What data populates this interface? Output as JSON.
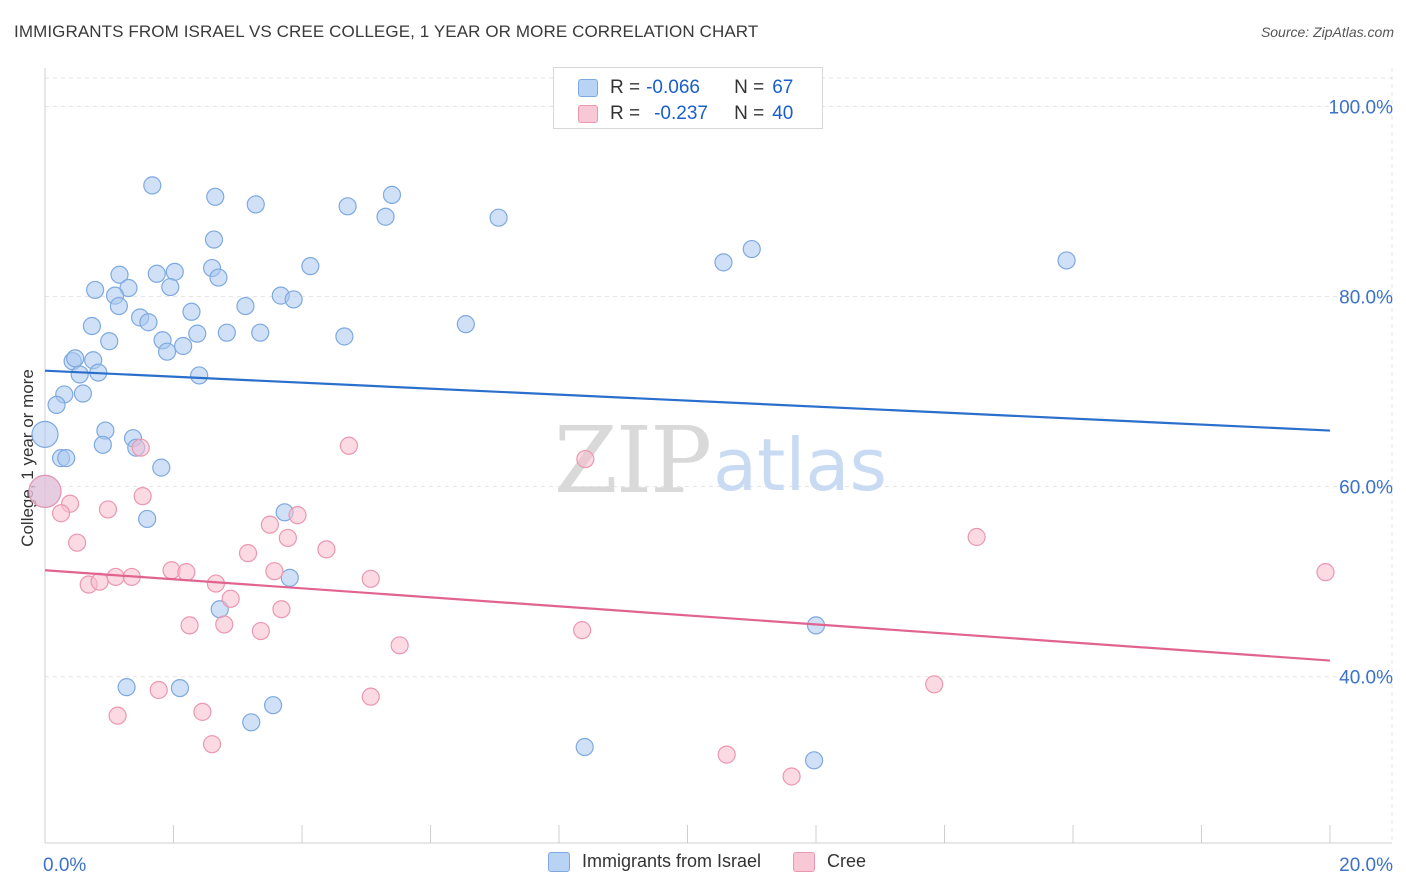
{
  "title": "IMMIGRANTS FROM ISRAEL VS CREE COLLEGE, 1 YEAR OR MORE CORRELATION CHART",
  "source": "Source: ZipAtlas.com",
  "watermark": {
    "part1": "ZIP",
    "part2": "atlas"
  },
  "legend": {
    "rows": [
      {
        "r_label": "R =",
        "r_value": "-0.066",
        "n_label": "N =",
        "n_value": "67"
      },
      {
        "r_label": "R =",
        "r_value": "-0.237",
        "n_label": "N =",
        "n_value": "40"
      }
    ]
  },
  "colors": {
    "blue_fill": "#aac8f0",
    "blue_edge": "#7ea9e0",
    "blue_line": "#2a6fcc",
    "pink_fill": "#f7bccd",
    "pink_edge": "#eb97b1",
    "pink_line": "#e0648f",
    "tick_label": "#3c72c8",
    "grid": "#e3e3e3"
  },
  "chart_data": {
    "type": "scatter",
    "title": "IMMIGRANTS FROM ISRAEL VS CREE COLLEGE, 1 YEAR OR MORE CORRELATION CHART",
    "xlabel": "",
    "ylabel": "College, 1 year or more",
    "xlim": [
      0,
      20
    ],
    "ylim": [
      22.5,
      103
    ],
    "x_tick_labels": [
      {
        "value": 0,
        "label": "0.0%"
      },
      {
        "value": 20,
        "label": "20.0%"
      }
    ],
    "y_tick_labels": [
      {
        "value": 40,
        "label": "40.0%"
      },
      {
        "value": 60,
        "label": "60.0%"
      },
      {
        "value": 80,
        "label": "80.0%"
      },
      {
        "value": 100,
        "label": "100.0%"
      }
    ],
    "grid": true,
    "legend_position": "top-center",
    "series": [
      {
        "name": "Immigrants from Israel",
        "color": "blue",
        "trend": [
          [
            0,
            72.2
          ],
          [
            20,
            65.9
          ]
        ],
        "points": [
          [
            1.67,
            91.7
          ],
          [
            2.65,
            90.5
          ],
          [
            3.28,
            89.7
          ],
          [
            4.71,
            89.5
          ],
          [
            5.3,
            88.4
          ],
          [
            5.4,
            90.7
          ],
          [
            7.06,
            88.3
          ],
          [
            2.63,
            86.0
          ],
          [
            10.56,
            83.6
          ],
          [
            11.0,
            85.0
          ],
          [
            15.9,
            83.8
          ],
          [
            1.16,
            82.3
          ],
          [
            1.74,
            82.4
          ],
          [
            2.02,
            82.6
          ],
          [
            2.6,
            83.0
          ],
          [
            2.7,
            82.0
          ],
          [
            4.13,
            83.2
          ],
          [
            0.78,
            80.7
          ],
          [
            1.3,
            80.9
          ],
          [
            1.09,
            80.1
          ],
          [
            1.15,
            79.0
          ],
          [
            1.95,
            81.0
          ],
          [
            3.12,
            79.0
          ],
          [
            3.67,
            80.1
          ],
          [
            3.87,
            79.7
          ],
          [
            0.73,
            76.9
          ],
          [
            1.48,
            77.8
          ],
          [
            1.61,
            77.3
          ],
          [
            2.28,
            78.4
          ],
          [
            1.0,
            75.3
          ],
          [
            1.83,
            75.4
          ],
          [
            1.9,
            74.2
          ],
          [
            2.15,
            74.8
          ],
          [
            2.37,
            76.1
          ],
          [
            2.83,
            76.2
          ],
          [
            3.35,
            76.2
          ],
          [
            4.66,
            75.8
          ],
          [
            6.55,
            77.1
          ],
          [
            0.43,
            73.2
          ],
          [
            0.47,
            73.5
          ],
          [
            0.75,
            73.3
          ],
          [
            0.54,
            71.8
          ],
          [
            0.83,
            72.0
          ],
          [
            2.4,
            71.7
          ],
          [
            0.3,
            69.7
          ],
          [
            0.59,
            69.8
          ],
          [
            0.18,
            68.6
          ],
          [
            0.0,
            65.5
          ],
          [
            0.94,
            65.9
          ],
          [
            1.37,
            65.1
          ],
          [
            0.9,
            64.4
          ],
          [
            1.42,
            64.1
          ],
          [
            0.25,
            63.0
          ],
          [
            0.33,
            63.0
          ],
          [
            1.81,
            62.0
          ],
          [
            0.0,
            59.5
          ],
          [
            1.59,
            56.6
          ],
          [
            3.73,
            57.3
          ],
          [
            3.81,
            50.4
          ],
          [
            2.72,
            47.1
          ],
          [
            12.0,
            45.4
          ],
          [
            1.27,
            38.9
          ],
          [
            2.1,
            38.8
          ],
          [
            3.55,
            37.0
          ],
          [
            3.21,
            35.2
          ],
          [
            8.4,
            32.6
          ],
          [
            11.97,
            31.2
          ]
        ]
      },
      {
        "name": "Cree",
        "color": "pink",
        "trend": [
          [
            0,
            51.2
          ],
          [
            20,
            41.7
          ]
        ],
        "points": [
          [
            0.0,
            59.5
          ],
          [
            1.49,
            64.1
          ],
          [
            4.73,
            64.3
          ],
          [
            8.41,
            62.9
          ],
          [
            0.39,
            58.2
          ],
          [
            1.52,
            59.0
          ],
          [
            0.25,
            57.2
          ],
          [
            0.98,
            57.6
          ],
          [
            3.5,
            56.0
          ],
          [
            3.93,
            57.0
          ],
          [
            0.5,
            54.1
          ],
          [
            3.78,
            54.6
          ],
          [
            4.38,
            53.4
          ],
          [
            14.5,
            54.7
          ],
          [
            3.16,
            53.0
          ],
          [
            1.97,
            51.2
          ],
          [
            2.2,
            51.0
          ],
          [
            1.1,
            50.5
          ],
          [
            1.35,
            50.5
          ],
          [
            3.57,
            51.1
          ],
          [
            5.07,
            50.3
          ],
          [
            19.93,
            51.0
          ],
          [
            0.68,
            49.7
          ],
          [
            0.85,
            50.0
          ],
          [
            2.66,
            49.8
          ],
          [
            2.89,
            48.2
          ],
          [
            3.68,
            47.1
          ],
          [
            2.25,
            45.4
          ],
          [
            2.79,
            45.5
          ],
          [
            3.36,
            44.8
          ],
          [
            8.36,
            44.9
          ],
          [
            5.52,
            43.3
          ],
          [
            1.77,
            38.6
          ],
          [
            13.84,
            39.2
          ],
          [
            5.07,
            37.9
          ],
          [
            1.13,
            35.9
          ],
          [
            2.45,
            36.3
          ],
          [
            2.6,
            32.9
          ],
          [
            10.61,
            31.8
          ],
          [
            11.62,
            29.5
          ]
        ]
      }
    ]
  }
}
